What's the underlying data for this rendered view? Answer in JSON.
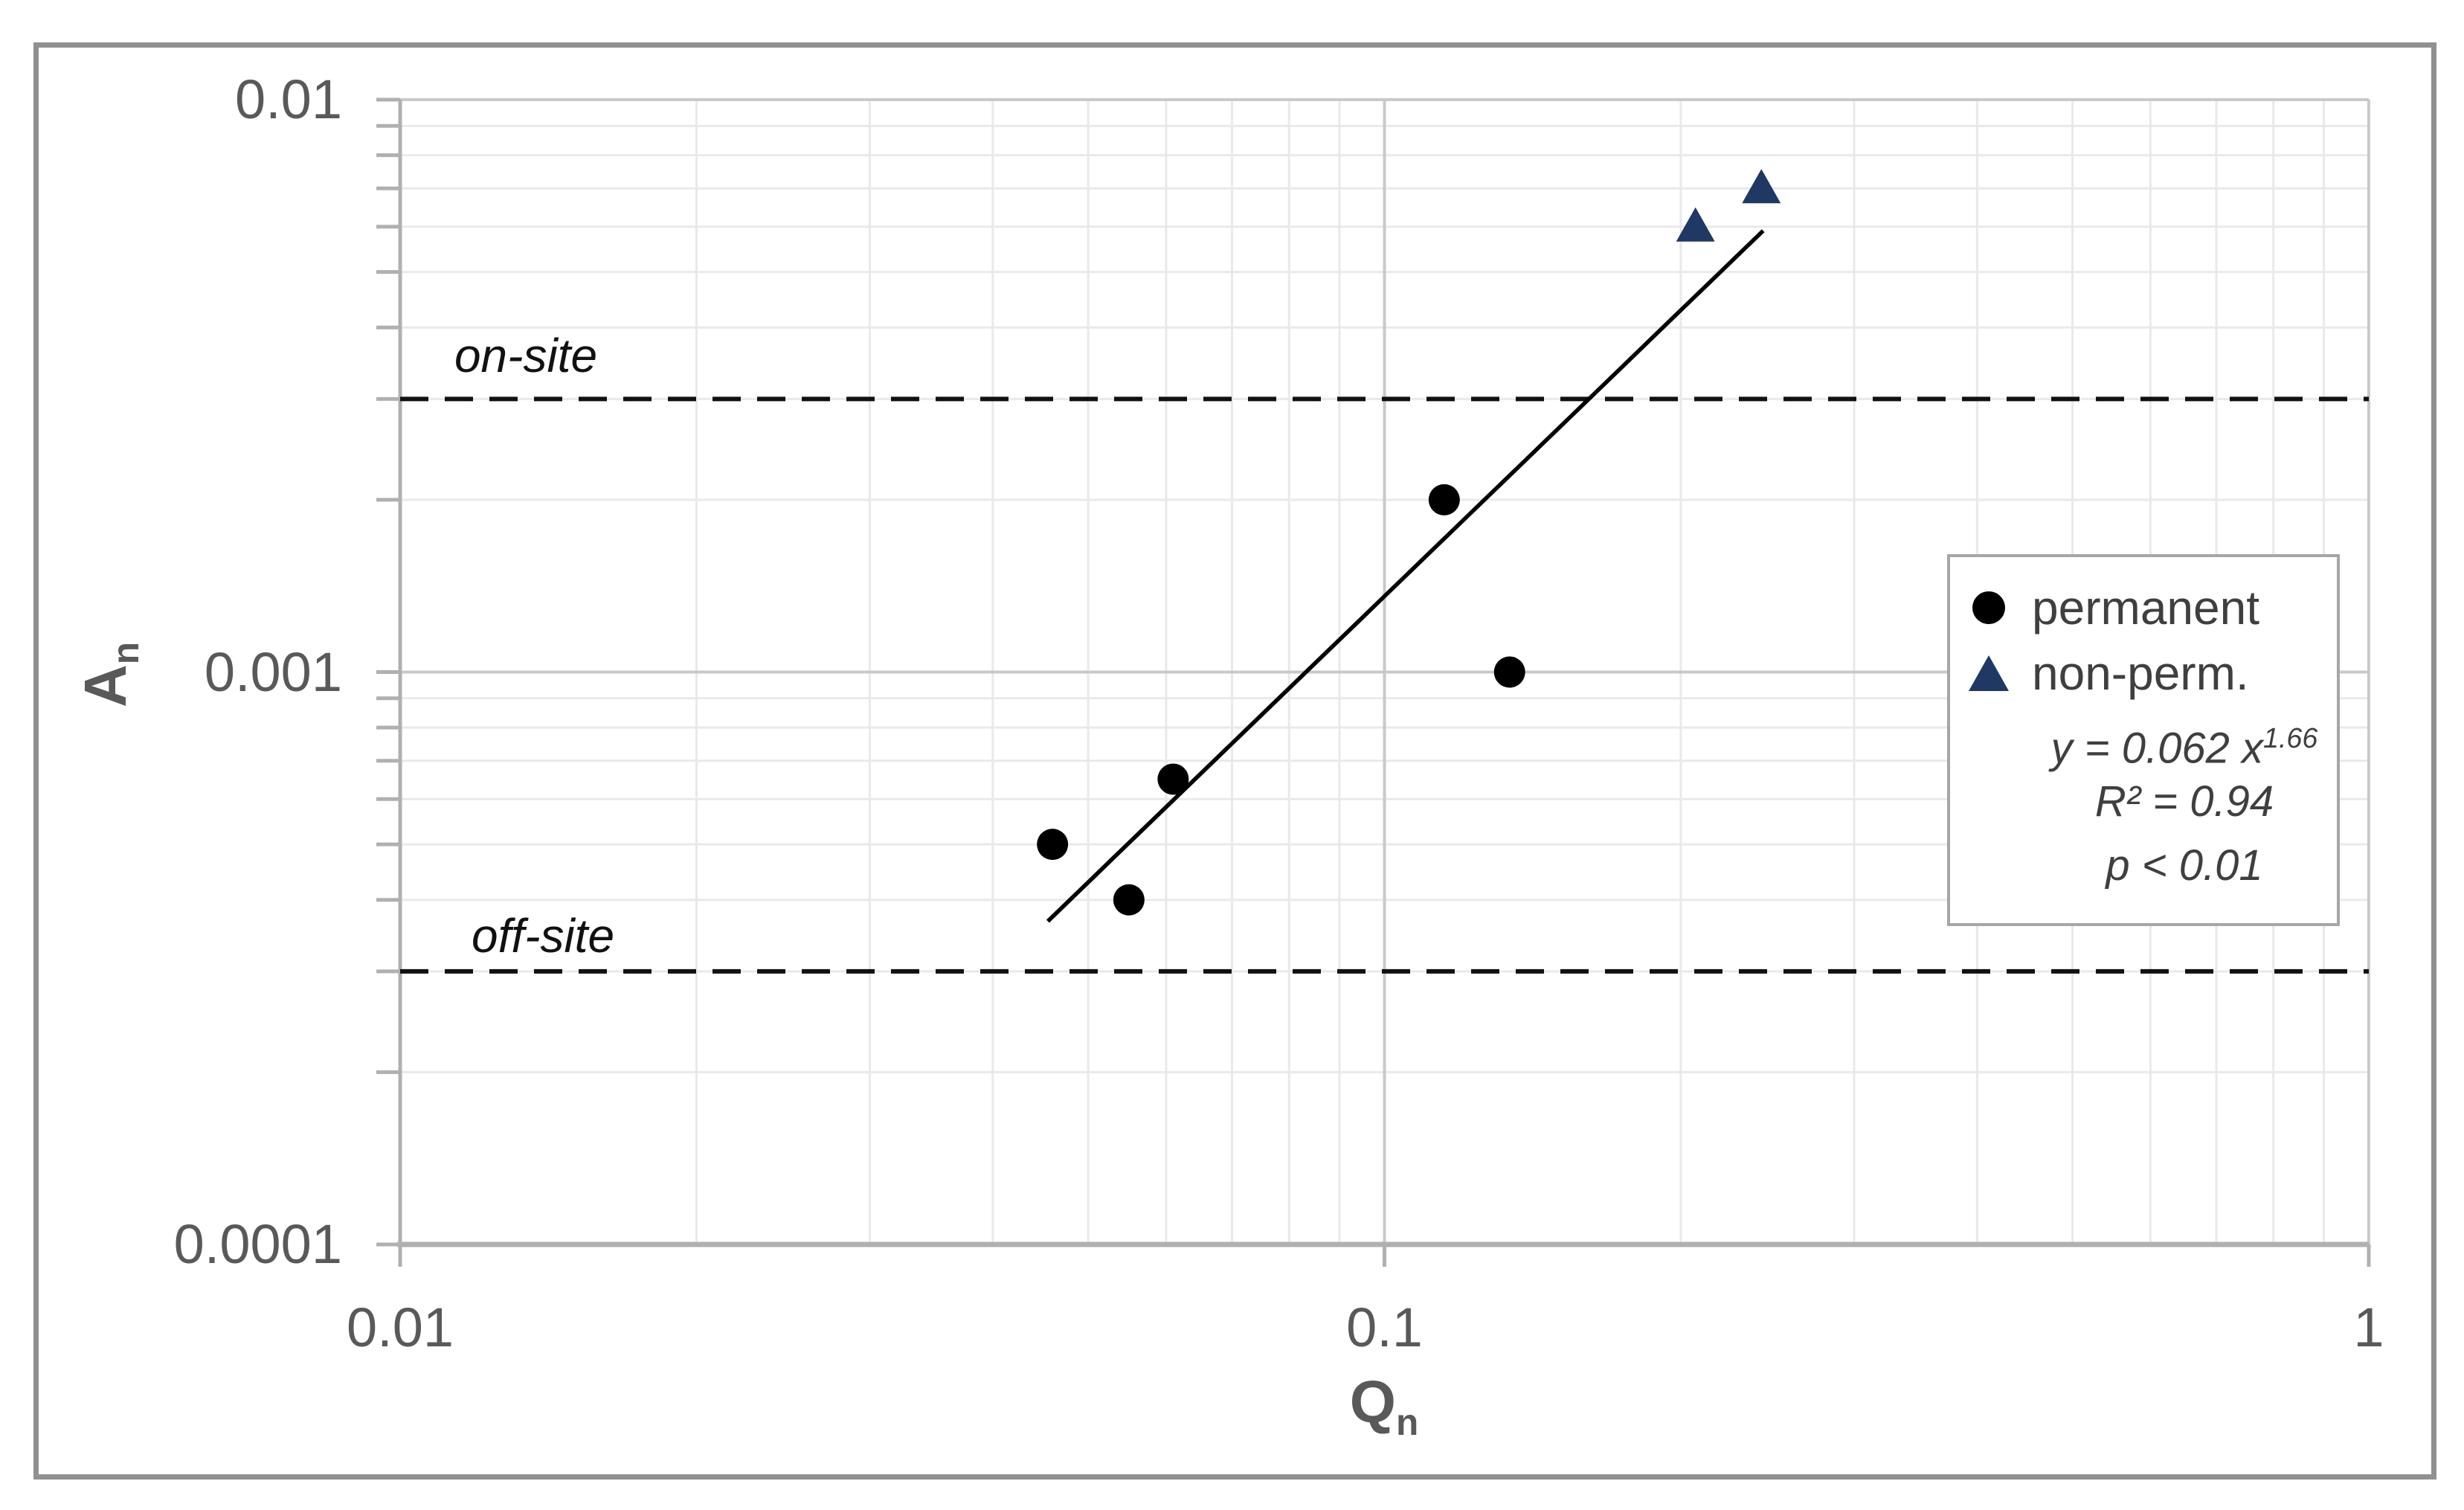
{
  "figure": {
    "y_axis_title": {
      "main": "A",
      "sub": "n"
    },
    "x_axis_title": {
      "main": "Q",
      "sub": "n"
    }
  },
  "legend": {
    "entries": [
      {
        "label": "permanent",
        "marker": "circle"
      },
      {
        "label": "non-perm.",
        "marker": "triangle"
      }
    ],
    "equation_base": "y = 0.062 x",
    "equation_exponent": "1.66",
    "r_squared": "R² = 0.94",
    "p_value": "p < 0.01"
  },
  "chart_data": {
    "type": "scatter",
    "title": "",
    "xlabel": "Qn",
    "ylabel": "An",
    "x_axis": {
      "scale": "log",
      "min": 0.01,
      "max": 1,
      "ticks": [
        {
          "value": 0.01,
          "label": "0.01"
        },
        {
          "value": 0.1,
          "label": "0.1"
        },
        {
          "value": 1,
          "label": "1"
        }
      ]
    },
    "y_axis": {
      "scale": "log",
      "min": 0.0001,
      "max": 0.01,
      "ticks": [
        {
          "value": 0.01,
          "label": "0.01"
        },
        {
          "value": 0.001,
          "label": "0.001"
        },
        {
          "value": 0.0001,
          "label": "0.0001"
        }
      ]
    },
    "grid": {
      "minor": true,
      "major": true
    },
    "series": [
      {
        "name": "permanent",
        "marker": "circle",
        "color": "#000000",
        "points": [
          {
            "x": 0.046,
            "y": 0.0005
          },
          {
            "x": 0.055,
            "y": 0.0004
          },
          {
            "x": 0.061,
            "y": 0.00065
          },
          {
            "x": 0.115,
            "y": 0.002
          },
          {
            "x": 0.134,
            "y": 0.001
          }
        ]
      },
      {
        "name": "non-perm",
        "marker": "triangle",
        "color": "#1f3864",
        "points": [
          {
            "x": 0.207,
            "y": 0.006
          },
          {
            "x": 0.2415,
            "y": 0.007
          }
        ]
      }
    ],
    "trendline": {
      "coefficient": 0.062,
      "exponent": 1.66,
      "x_start": 0.0455,
      "x_end": 0.2425,
      "color": "#000000"
    },
    "reference_lines": [
      {
        "label": "on-site",
        "y": 0.003,
        "style": "dashed",
        "color": "#111111"
      },
      {
        "label": "off-site",
        "y": 0.0003,
        "style": "dashed",
        "color": "#111111"
      }
    ],
    "colors": {
      "tick_text": "#595959",
      "axis_line": "#b0b0b0",
      "major_grid": "#c9c9c9",
      "minor_grid": "#e9e9e9",
      "legend_text": "#3f3f3f"
    },
    "legend_position": "right-middle"
  }
}
